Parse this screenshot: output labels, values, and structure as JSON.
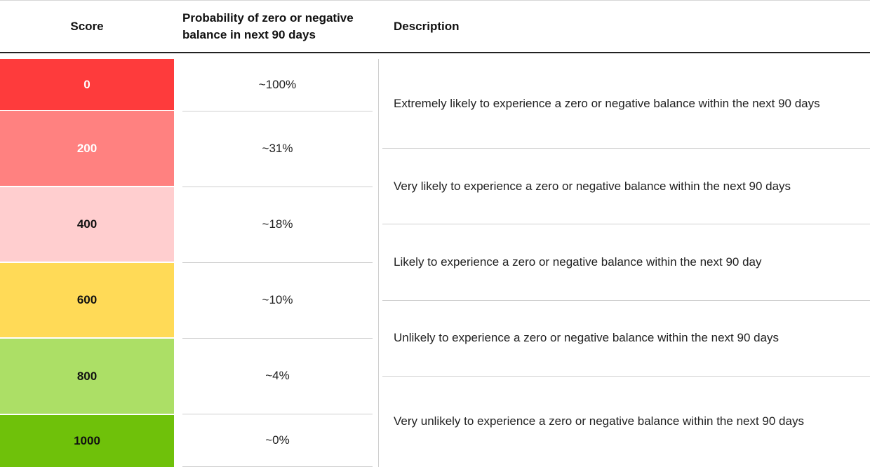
{
  "table": {
    "headers": {
      "score": "Score",
      "probability": "Probability of zero or negative balance in next 90 days",
      "description": "Description"
    },
    "rows": [
      {
        "score": "0",
        "probability": "~100%",
        "color": "#fe3b3c"
      },
      {
        "score": "200",
        "probability": "~31%",
        "color": "#ff8180"
      },
      {
        "score": "400",
        "probability": "~18%",
        "color": "#ffcecf"
      },
      {
        "score": "600",
        "probability": "~10%",
        "color": "#ffda57"
      },
      {
        "score": "800",
        "probability": "~4%",
        "color": "#acdf66"
      },
      {
        "score": "1000",
        "probability": "~0%",
        "color": "#6fc10a"
      }
    ],
    "descriptions": [
      "Extremely likely to experience a zero or negative balance within the next 90 days",
      "Very likely to experience a zero or negative balance within the next 90 days",
      "Likely to experience a zero or negative balance within the next 90 day",
      "Unlikely to experience a zero or negative balance within the next 90 days",
      "Very unlikely to experience a zero or negative balance within the next 90 days"
    ]
  }
}
